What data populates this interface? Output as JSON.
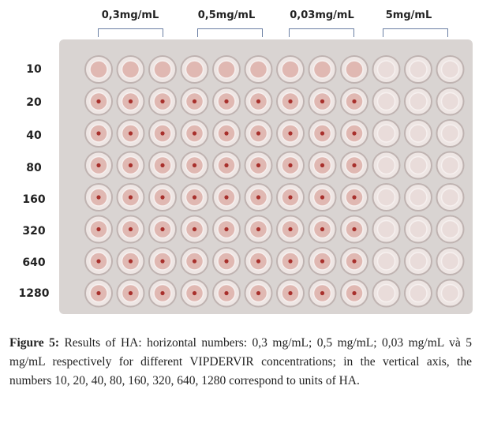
{
  "figure": {
    "concentrations": [
      "0,3mg/mL",
      "0,5mg/mL",
      "0,03mg/mL",
      "5mg/mL"
    ],
    "ha_units": [
      "10",
      "20",
      "40",
      "80",
      "160",
      "320",
      "640",
      "1280"
    ],
    "caption_label": "Figure 5:",
    "caption_text": " Results of HA: horizontal numbers: 0,3 mg/mL; 0,5 mg/mL; 0,03 mg/mL và 5 mg/mL respectively for different VIPDERVIR concentrations; in the vertical axis, the numbers 10, 20, 40, 80, 160, 320, 640, 1280 correspond to units of HA."
  },
  "colors": {
    "well_red": "#a8302c",
    "plate": "#d9d4d2",
    "bracket": "#6a7fa3"
  }
}
